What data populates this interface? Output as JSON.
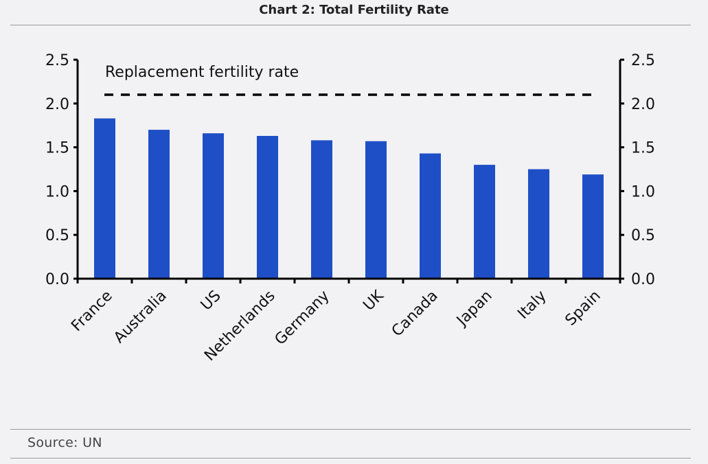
{
  "title": "Chart 2: Total Fertility Rate",
  "source": "Source: UN",
  "chart_data": {
    "type": "bar",
    "title": "Chart 2: Total Fertility Rate",
    "categories": [
      "France",
      "Australia",
      "US",
      "Netherlands",
      "Germany",
      "UK",
      "Canada",
      "Japan",
      "Italy",
      "Spain"
    ],
    "values": [
      1.83,
      1.7,
      1.66,
      1.63,
      1.58,
      1.57,
      1.43,
      1.3,
      1.25,
      1.19
    ],
    "ylim": [
      0,
      2.5
    ],
    "yticks": [
      "0.0",
      "0.5",
      "1.0",
      "1.5",
      "2.0",
      "2.5"
    ],
    "reference_line": {
      "label": "Replacement fertility rate",
      "value": 2.1
    },
    "bar_color": "#1f4fc7",
    "grid": false,
    "dual_axis_labels": true
  }
}
